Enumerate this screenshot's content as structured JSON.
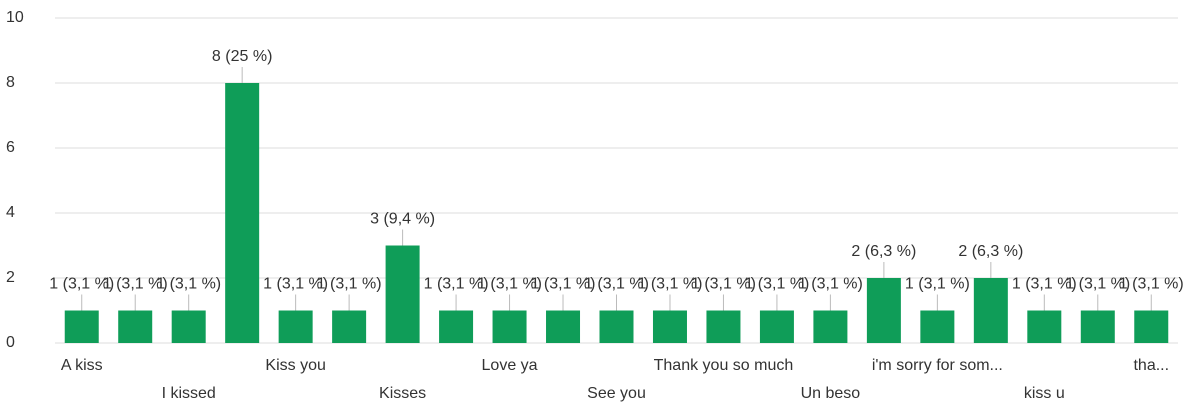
{
  "chart_data": {
    "type": "bar",
    "categories": [
      "A kiss",
      null,
      "I kissed",
      null,
      "Kiss you",
      null,
      "Kisses",
      null,
      "Love ya",
      null,
      "See you",
      null,
      "Thank you so much",
      null,
      "Un beso",
      null,
      "i'm sorry for som...",
      null,
      "kiss u",
      null,
      "tha..."
    ],
    "values": [
      1,
      1,
      1,
      8,
      1,
      1,
      3,
      1,
      1,
      1,
      1,
      1,
      1,
      1,
      1,
      2,
      1,
      2,
      1,
      1,
      1
    ],
    "value_labels": [
      "1 (3,1 %)",
      "1 (3,1 %)",
      "1 (3,1 %)",
      "8 (25 %)",
      "1 (3,1 %)",
      "1 (3,1 %)",
      "3 (9,4 %)",
      "1 (3,1 %)",
      "1 (3,1 %)",
      "1 (3,1 %)",
      "1 (3,1 %)",
      "1 (3,1 %)",
      "1 (3,1 %)",
      "1 (3,1 %)",
      "1 (3,1 %)",
      "2 (6,3 %)",
      "1 (3,1 %)",
      "2 (6,3 %)",
      "1 (3,1 %)",
      "1 (3,1 %)",
      "1 (3,1 %)"
    ],
    "color": "#0f9d58",
    "ylim": [
      0,
      10
    ],
    "yticks": [
      0,
      2,
      4,
      6,
      8,
      10
    ],
    "grid": true
  }
}
